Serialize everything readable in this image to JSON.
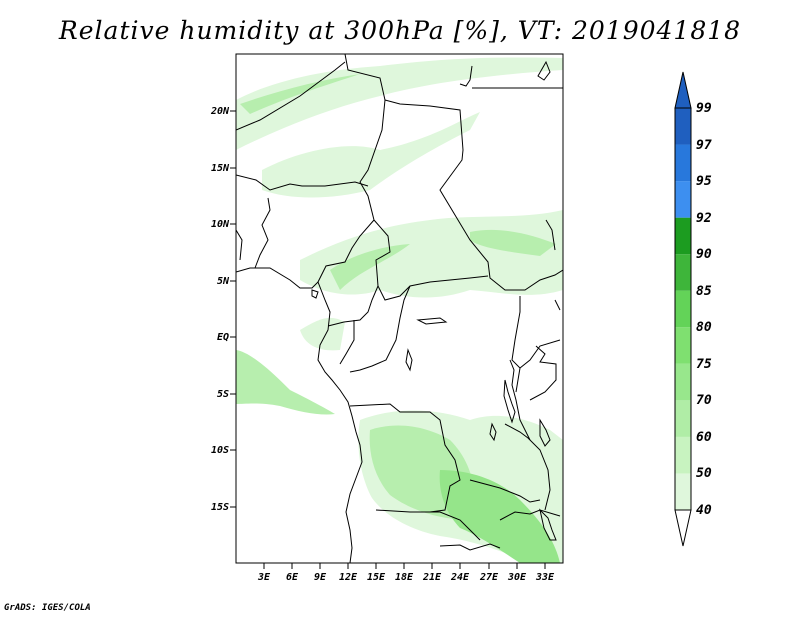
{
  "title": "Relative humidity at 300hPa [%], VT: 2019041818",
  "credit": "GrADS: IGES/COLA",
  "lat_ticks": [
    "20N",
    "15N",
    "10N",
    "5N",
    "EQ",
    "5S",
    "10S",
    "15S"
  ],
  "lon_ticks": [
    "3E",
    "6E",
    "9E",
    "12E",
    "15E",
    "18E",
    "21E",
    "24E",
    "27E",
    "30E",
    "33E"
  ],
  "colorbar": {
    "labels": [
      "40",
      "50",
      "60",
      "70",
      "75",
      "80",
      "85",
      "90",
      "92",
      "95",
      "97",
      "99"
    ],
    "colors": [
      "#f0fcf0",
      "#dff7dc",
      "#c8f3c0",
      "#b0eda6",
      "#98e78c",
      "#7fe070",
      "#63d358",
      "#3eb53a",
      "#1c9c20",
      "#3d8ff0",
      "#2878dc",
      "#1f5fbf"
    ]
  },
  "shading_colors": {
    "light": "#dff7dc",
    "mid": "#b7eeae",
    "strong": "#95e58a"
  }
}
